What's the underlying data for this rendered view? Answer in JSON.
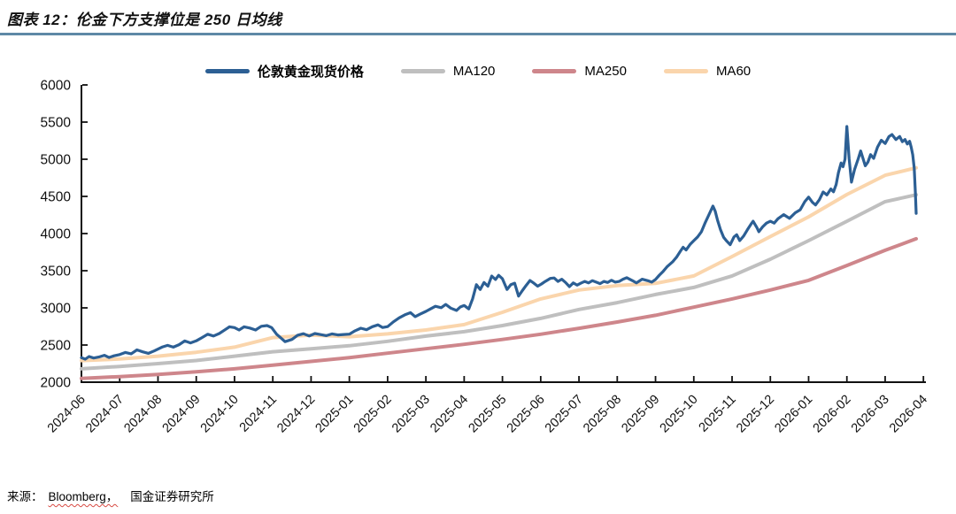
{
  "header": {
    "divider_color": "#5E89A6"
  },
  "footer": {
    "source_label": "来源：",
    "source_bloomberg": "Bloomberg，",
    "source_org": "国金证券研究所"
  },
  "chart_data": {
    "type": "line",
    "title": "图表 12：伦金下方支撑位是 250 日均线",
    "xlabel": "",
    "ylabel": "",
    "ylim": [
      2000,
      6000
    ],
    "y_ticks": [
      2000,
      2500,
      3000,
      3500,
      4000,
      4500,
      5000,
      5500,
      6000
    ],
    "x_labels": [
      "2024-06",
      "2024-07",
      "2024-08",
      "2024-09",
      "2024-10",
      "2024-11",
      "2024-12",
      "2025-01",
      "2025-02",
      "2025-03",
      "2025-04",
      "2025-05",
      "2025-06",
      "2025-07",
      "2025-08",
      "2025-09",
      "2025-10",
      "2025-11",
      "2025-12",
      "2026-01",
      "2026-02",
      "2026-03",
      "2026-04"
    ],
    "x_unit": "months from 2024-06",
    "grid": false,
    "legend_position": "top",
    "axis_color": "#111111",
    "series": [
      {
        "name": "伦敦黄金现货价格",
        "color": "#2C5F94",
        "width": 3.2,
        "z": 4,
        "points": [
          [
            0,
            2330
          ],
          [
            0.1,
            2310
          ],
          [
            0.2,
            2345
          ],
          [
            0.32,
            2325
          ],
          [
            0.45,
            2338
          ],
          [
            0.6,
            2362
          ],
          [
            0.72,
            2332
          ],
          [
            0.85,
            2355
          ],
          [
            1,
            2372
          ],
          [
            1.15,
            2400
          ],
          [
            1.3,
            2382
          ],
          [
            1.45,
            2435
          ],
          [
            1.6,
            2408
          ],
          [
            1.75,
            2388
          ],
          [
            1.9,
            2420
          ],
          [
            2,
            2445
          ],
          [
            2.12,
            2475
          ],
          [
            2.25,
            2495
          ],
          [
            2.4,
            2472
          ],
          [
            2.55,
            2505
          ],
          [
            2.7,
            2555
          ],
          [
            2.85,
            2528
          ],
          [
            3,
            2556
          ],
          [
            3.15,
            2600
          ],
          [
            3.3,
            2645
          ],
          [
            3.45,
            2622
          ],
          [
            3.6,
            2655
          ],
          [
            3.75,
            2705
          ],
          [
            3.87,
            2745
          ],
          [
            4,
            2735
          ],
          [
            4.12,
            2702
          ],
          [
            4.25,
            2745
          ],
          [
            4.4,
            2728
          ],
          [
            4.55,
            2702
          ],
          [
            4.7,
            2752
          ],
          [
            4.85,
            2762
          ],
          [
            4.97,
            2735
          ],
          [
            5.1,
            2645
          ],
          [
            5.22,
            2592
          ],
          [
            5.32,
            2545
          ],
          [
            5.5,
            2575
          ],
          [
            5.65,
            2632
          ],
          [
            5.8,
            2652
          ],
          [
            5.95,
            2622
          ],
          [
            6.1,
            2655
          ],
          [
            6.25,
            2640
          ],
          [
            6.4,
            2626
          ],
          [
            6.55,
            2650
          ],
          [
            6.7,
            2636
          ],
          [
            6.85,
            2642
          ],
          [
            7,
            2646
          ],
          [
            7.15,
            2692
          ],
          [
            7.3,
            2726
          ],
          [
            7.45,
            2706
          ],
          [
            7.6,
            2746
          ],
          [
            7.75,
            2772
          ],
          [
            7.87,
            2736
          ],
          [
            8,
            2748
          ],
          [
            8.15,
            2812
          ],
          [
            8.3,
            2866
          ],
          [
            8.45,
            2906
          ],
          [
            8.6,
            2936
          ],
          [
            8.72,
            2882
          ],
          [
            8.85,
            2916
          ],
          [
            9,
            2952
          ],
          [
            9.12,
            2986
          ],
          [
            9.25,
            3022
          ],
          [
            9.4,
            3002
          ],
          [
            9.52,
            3046
          ],
          [
            9.65,
            2996
          ],
          [
            9.8,
            2966
          ],
          [
            9.9,
            3012
          ],
          [
            10,
            3032
          ],
          [
            10.12,
            2986
          ],
          [
            10.22,
            3122
          ],
          [
            10.32,
            3312
          ],
          [
            10.42,
            3248
          ],
          [
            10.52,
            3342
          ],
          [
            10.62,
            3292
          ],
          [
            10.72,
            3428
          ],
          [
            10.82,
            3382
          ],
          [
            10.9,
            3438
          ],
          [
            11,
            3392
          ],
          [
            11.12,
            3248
          ],
          [
            11.22,
            3312
          ],
          [
            11.32,
            3332
          ],
          [
            11.42,
            3158
          ],
          [
            11.52,
            3232
          ],
          [
            11.62,
            3302
          ],
          [
            11.72,
            3368
          ],
          [
            11.82,
            3332
          ],
          [
            11.92,
            3292
          ],
          [
            12.02,
            3322
          ],
          [
            12.12,
            3356
          ],
          [
            12.25,
            3396
          ],
          [
            12.35,
            3402
          ],
          [
            12.45,
            3356
          ],
          [
            12.55,
            3386
          ],
          [
            12.65,
            3342
          ],
          [
            12.75,
            3286
          ],
          [
            12.85,
            3336
          ],
          [
            12.95,
            3306
          ],
          [
            13.05,
            3332
          ],
          [
            13.15,
            3356
          ],
          [
            13.25,
            3336
          ],
          [
            13.35,
            3366
          ],
          [
            13.45,
            3346
          ],
          [
            13.55,
            3326
          ],
          [
            13.65,
            3356
          ],
          [
            13.75,
            3342
          ],
          [
            13.85,
            3372
          ],
          [
            13.95,
            3346
          ],
          [
            14.05,
            3356
          ],
          [
            14.15,
            3386
          ],
          [
            14.25,
            3406
          ],
          [
            14.4,
            3366
          ],
          [
            14.5,
            3336
          ],
          [
            14.65,
            3386
          ],
          [
            14.8,
            3366
          ],
          [
            14.9,
            3346
          ],
          [
            15,
            3382
          ],
          [
            15.1,
            3440
          ],
          [
            15.2,
            3492
          ],
          [
            15.3,
            3552
          ],
          [
            15.45,
            3622
          ],
          [
            15.55,
            3682
          ],
          [
            15.65,
            3762
          ],
          [
            15.72,
            3815
          ],
          [
            15.8,
            3778
          ],
          [
            15.9,
            3852
          ],
          [
            16,
            3905
          ],
          [
            16.1,
            3955
          ],
          [
            16.2,
            4025
          ],
          [
            16.3,
            4150
          ],
          [
            16.42,
            4280
          ],
          [
            16.5,
            4370
          ],
          [
            16.56,
            4300
          ],
          [
            16.62,
            4180
          ],
          [
            16.7,
            4050
          ],
          [
            16.78,
            3950
          ],
          [
            16.85,
            3905
          ],
          [
            16.95,
            3850
          ],
          [
            17.05,
            3955
          ],
          [
            17.12,
            3985
          ],
          [
            17.2,
            3905
          ],
          [
            17.3,
            3965
          ],
          [
            17.4,
            4050
          ],
          [
            17.5,
            4130
          ],
          [
            17.55,
            4165
          ],
          [
            17.65,
            4080
          ],
          [
            17.7,
            4025
          ],
          [
            17.8,
            4090
          ],
          [
            17.9,
            4140
          ],
          [
            18,
            4165
          ],
          [
            18.1,
            4140
          ],
          [
            18.2,
            4200
          ],
          [
            18.35,
            4255
          ],
          [
            18.5,
            4205
          ],
          [
            18.65,
            4280
          ],
          [
            18.78,
            4320
          ],
          [
            18.9,
            4430
          ],
          [
            19,
            4490
          ],
          [
            19.1,
            4420
          ],
          [
            19.18,
            4385
          ],
          [
            19.28,
            4455
          ],
          [
            19.38,
            4560
          ],
          [
            19.48,
            4520
          ],
          [
            19.58,
            4600
          ],
          [
            19.65,
            4562
          ],
          [
            19.72,
            4660
          ],
          [
            19.78,
            4820
          ],
          [
            19.85,
            4950
          ],
          [
            19.9,
            4900
          ],
          [
            19.95,
            5000
          ],
          [
            20,
            5440
          ],
          [
            20.06,
            5002
          ],
          [
            20.12,
            4692
          ],
          [
            20.2,
            4862
          ],
          [
            20.3,
            5012
          ],
          [
            20.36,
            5112
          ],
          [
            20.42,
            5012
          ],
          [
            20.48,
            4912
          ],
          [
            20.55,
            4962
          ],
          [
            20.62,
            5062
          ],
          [
            20.7,
            5012
          ],
          [
            20.8,
            5162
          ],
          [
            20.9,
            5256
          ],
          [
            21,
            5212
          ],
          [
            21.1,
            5306
          ],
          [
            21.18,
            5332
          ],
          [
            21.28,
            5266
          ],
          [
            21.38,
            5306
          ],
          [
            21.45,
            5236
          ],
          [
            21.52,
            5266
          ],
          [
            21.58,
            5206
          ],
          [
            21.64,
            5242
          ],
          [
            21.68,
            5162
          ],
          [
            21.72,
            5062
          ],
          [
            21.76,
            4882
          ],
          [
            21.79,
            4552
          ],
          [
            21.81,
            4272
          ]
        ]
      },
      {
        "name": "MA120",
        "color": "#BFBFBF",
        "width": 4,
        "z": 2,
        "points": [
          [
            0,
            2180
          ],
          [
            1,
            2212
          ],
          [
            2,
            2250
          ],
          [
            3,
            2292
          ],
          [
            4,
            2350
          ],
          [
            5,
            2410
          ],
          [
            6,
            2450
          ],
          [
            7,
            2490
          ],
          [
            8,
            2550
          ],
          [
            9,
            2620
          ],
          [
            10,
            2680
          ],
          [
            11,
            2762
          ],
          [
            12,
            2858
          ],
          [
            13,
            2978
          ],
          [
            14,
            3070
          ],
          [
            15,
            3180
          ],
          [
            16,
            3275
          ],
          [
            17,
            3430
          ],
          [
            18,
            3655
          ],
          [
            19,
            3905
          ],
          [
            20,
            4165
          ],
          [
            21,
            4430
          ],
          [
            21.81,
            4522
          ]
        ]
      },
      {
        "name": "MA250",
        "color": "#CE868B",
        "width": 4,
        "z": 1,
        "points": [
          [
            0,
            2050
          ],
          [
            1,
            2075
          ],
          [
            2,
            2105
          ],
          [
            3,
            2140
          ],
          [
            4,
            2180
          ],
          [
            5,
            2230
          ],
          [
            6,
            2280
          ],
          [
            7,
            2330
          ],
          [
            8,
            2390
          ],
          [
            9,
            2450
          ],
          [
            10,
            2510
          ],
          [
            11,
            2575
          ],
          [
            12,
            2645
          ],
          [
            13,
            2725
          ],
          [
            14,
            2810
          ],
          [
            15,
            2900
          ],
          [
            16,
            3010
          ],
          [
            17,
            3120
          ],
          [
            18,
            3240
          ],
          [
            19,
            3370
          ],
          [
            20,
            3570
          ],
          [
            21,
            3775
          ],
          [
            21.81,
            3930
          ]
        ]
      },
      {
        "name": "MA60",
        "color": "#FAD5AC",
        "width": 4,
        "z": 3,
        "points": [
          [
            0,
            2290
          ],
          [
            1,
            2312
          ],
          [
            2,
            2350
          ],
          [
            3,
            2402
          ],
          [
            4,
            2472
          ],
          [
            5,
            2600
          ],
          [
            6,
            2635
          ],
          [
            7,
            2612
          ],
          [
            8,
            2650
          ],
          [
            9,
            2702
          ],
          [
            10,
            2775
          ],
          [
            11,
            2940
          ],
          [
            12,
            3120
          ],
          [
            13,
            3240
          ],
          [
            14,
            3300
          ],
          [
            15,
            3330
          ],
          [
            16,
            3430
          ],
          [
            17,
            3690
          ],
          [
            18,
            3960
          ],
          [
            19,
            4225
          ],
          [
            20,
            4525
          ],
          [
            21,
            4785
          ],
          [
            21.81,
            4885
          ]
        ]
      }
    ]
  }
}
